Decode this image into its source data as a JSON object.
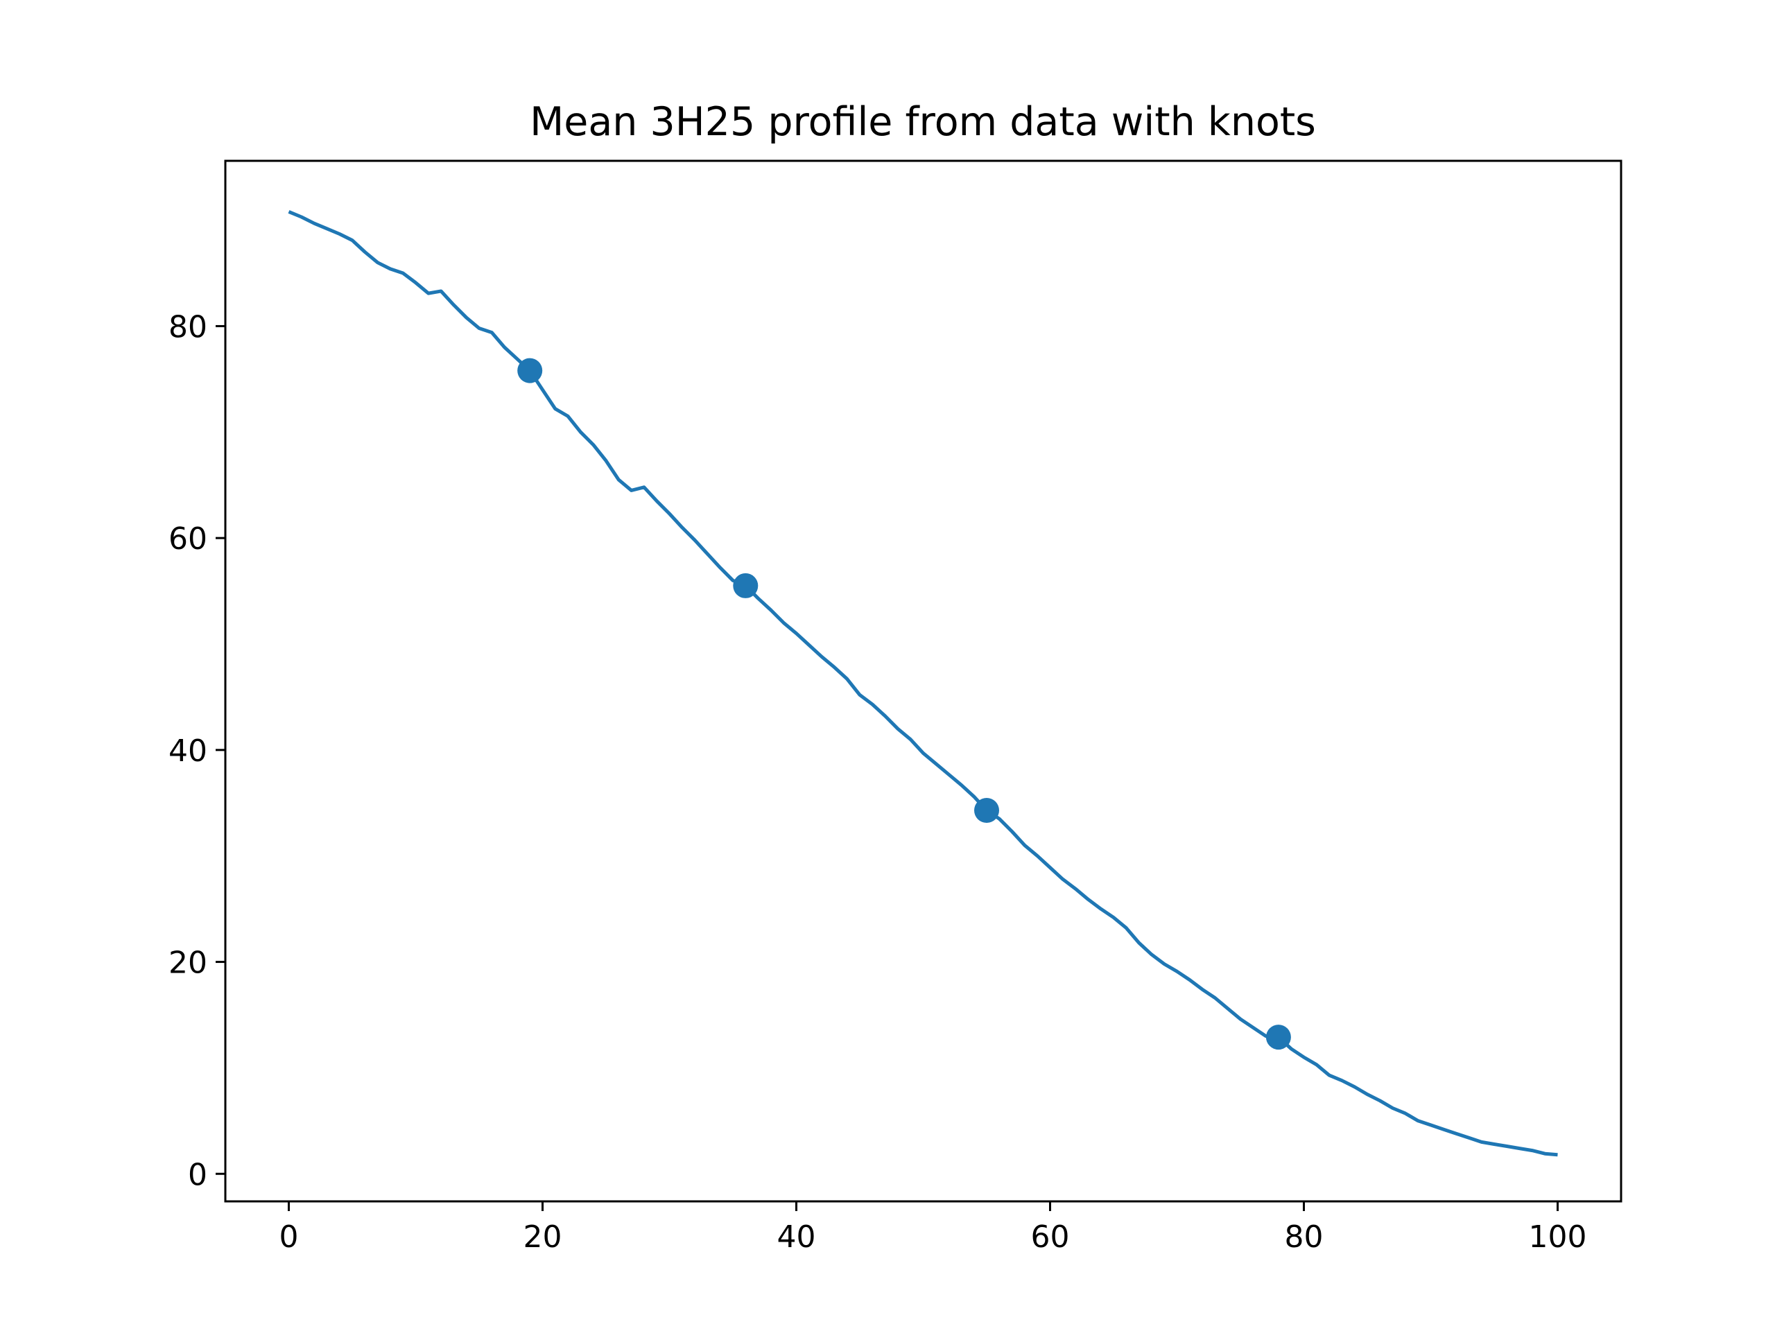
{
  "chart_data": {
    "type": "line",
    "title": "Mean 3H25 profile from data with knots",
    "xlabel": "",
    "ylabel": "",
    "xlim": [
      -5,
      105
    ],
    "ylim": [
      -2.6,
      95.6
    ],
    "x_ticks": [
      0,
      20,
      40,
      60,
      80,
      100
    ],
    "y_ticks": [
      0,
      20,
      40,
      60,
      80
    ],
    "grid": false,
    "legend": "none",
    "series_color": "#1f77b4",
    "series": [
      {
        "x": [
          0,
          1,
          2,
          3,
          4,
          5,
          6,
          7,
          8,
          9,
          10,
          11,
          12,
          13,
          14,
          15,
          16,
          17,
          18,
          19,
          20,
          21,
          22,
          23,
          24,
          25,
          26,
          27,
          28,
          29,
          30,
          31,
          32,
          33,
          34,
          35,
          36,
          37,
          38,
          39,
          40,
          41,
          42,
          43,
          44,
          45,
          46,
          47,
          48,
          49,
          50,
          51,
          52,
          53,
          54,
          55,
          56,
          57,
          58,
          59,
          60,
          61,
          62,
          63,
          64,
          65,
          66,
          67,
          68,
          69,
          70,
          71,
          72,
          73,
          74,
          75,
          76,
          77,
          78,
          79,
          80,
          81,
          82,
          83,
          84,
          85,
          86,
          87,
          88,
          89,
          90,
          91,
          92,
          93,
          94,
          95,
          96,
          97,
          98,
          99,
          100
        ],
        "y": [
          90.8,
          90.3,
          89.7,
          89.2,
          88.7,
          88.1,
          87.0,
          86.0,
          85.4,
          85.0,
          84.1,
          83.1,
          83.3,
          82.0,
          80.8,
          79.8,
          79.4,
          78.0,
          76.9,
          75.8,
          74.0,
          72.2,
          71.5,
          70.0,
          68.8,
          67.3,
          65.5,
          64.5,
          64.8,
          63.5,
          62.3,
          61.0,
          59.8,
          58.5,
          57.2,
          56.0,
          55.5,
          54.3,
          53.2,
          52.0,
          51.0,
          49.9,
          48.8,
          47.8,
          46.7,
          45.2,
          44.3,
          43.2,
          42.0,
          41.0,
          39.7,
          38.7,
          37.7,
          36.7,
          35.6,
          34.3,
          33.5,
          32.3,
          31.0,
          30.0,
          28.9,
          27.8,
          26.9,
          25.9,
          25.0,
          24.2,
          23.2,
          21.8,
          20.7,
          19.8,
          19.1,
          18.3,
          17.4,
          16.6,
          15.6,
          14.6,
          13.8,
          13.0,
          12.9,
          11.8,
          11.0,
          10.3,
          9.3,
          8.8,
          8.2,
          7.5,
          6.9,
          6.2,
          5.7,
          5.0,
          4.6,
          4.2,
          3.8,
          3.4,
          3.0,
          2.8,
          2.6,
          2.4,
          2.2,
          1.9,
          1.8
        ]
      }
    ],
    "knots": {
      "x": [
        19,
        36,
        55,
        78
      ],
      "y": [
        75.8,
        55.5,
        34.3,
        12.9
      ]
    }
  }
}
